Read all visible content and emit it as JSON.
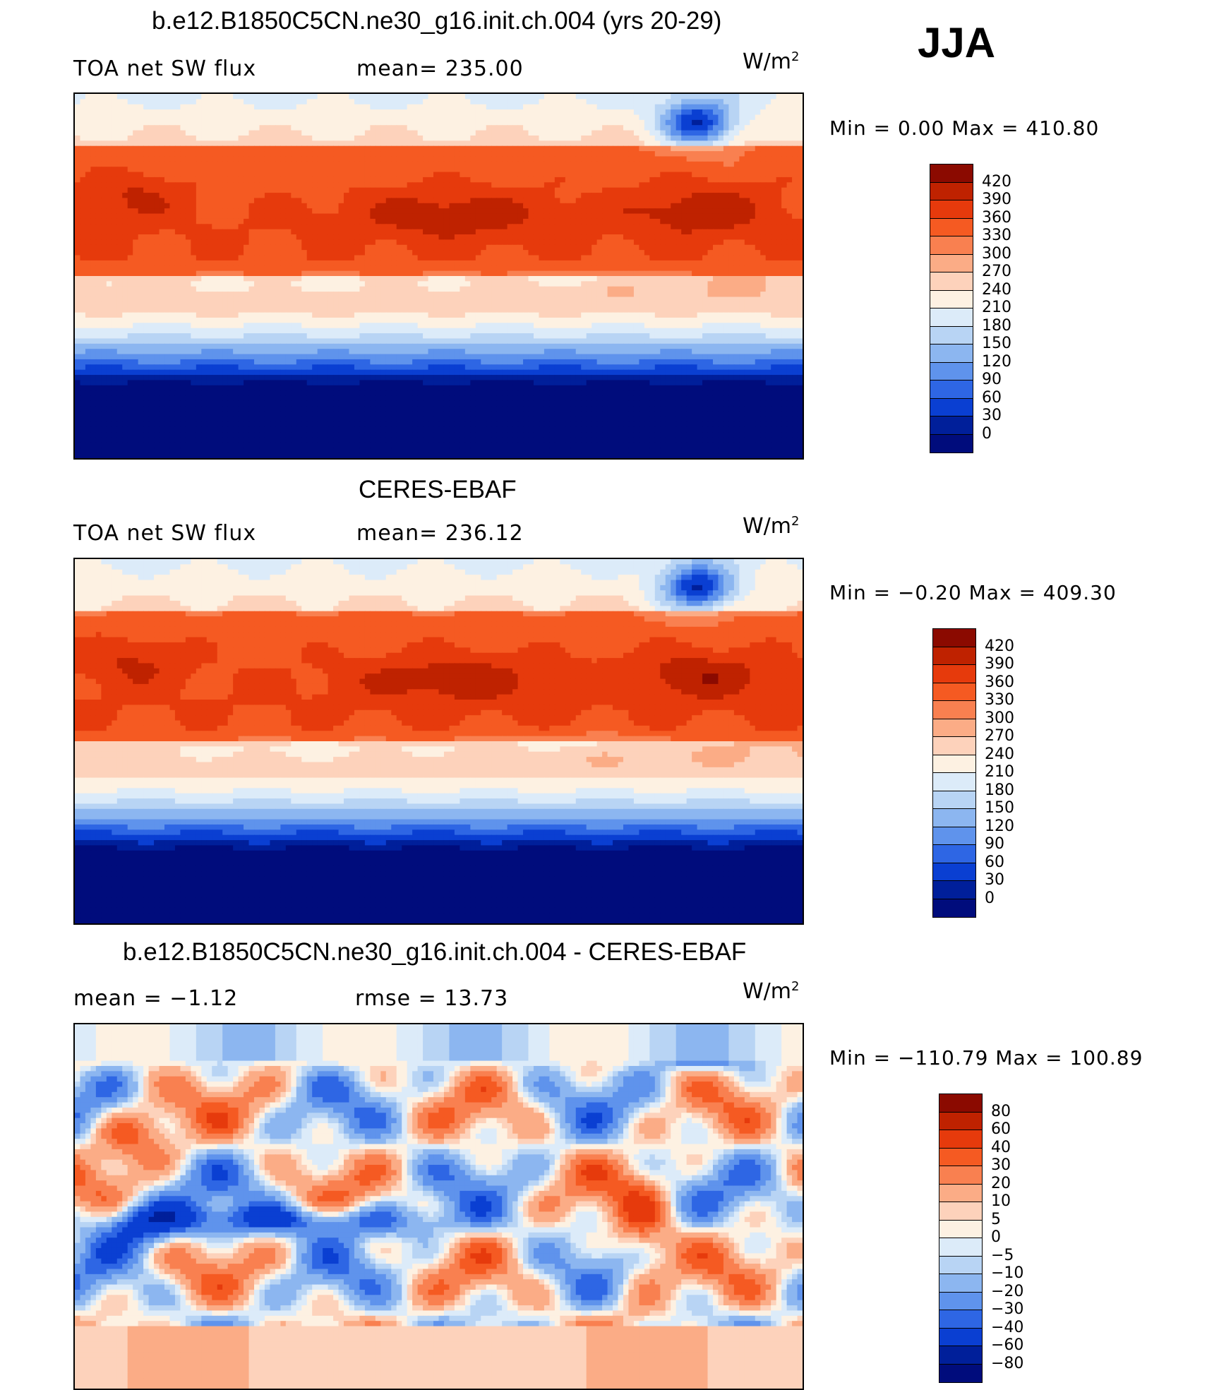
{
  "season": "JJA",
  "panels": [
    {
      "title": "b.e12.B1850C5CN.ne30_g16.init.ch.004 (yrs 20-29)",
      "left_label": "TOA net SW flux",
      "stat_label": "mean= 235.00",
      "units": "W/m",
      "units_sup": "2",
      "minmax": "Min =    0.00 Max = 410.80",
      "map_alt": "Global map of TOA net SW flux from model run"
    },
    {
      "title": "CERES-EBAF",
      "left_label": "TOA net SW flux",
      "stat_label": "mean= 236.12",
      "units": "W/m",
      "units_sup": "2",
      "minmax": "Min =  −0.20 Max = 409.30",
      "map_alt": "Global map of TOA net SW flux from CERES-EBAF"
    },
    {
      "title": "b.e12.B1850C5CN.ne30_g16.init.ch.004 - CERES-EBAF",
      "left_label": "mean =   −1.12",
      "stat_label": "rmse =   13.73",
      "units": "W/m",
      "units_sup": "2",
      "minmax": "Min = −110.79 Max = 100.89",
      "map_alt": "Global map of difference model minus CERES-EBAF"
    }
  ],
  "chart_data": [
    {
      "type": "heatmap",
      "title": "b.e12.B1850C5CN.ne30_g16.init.ch.004 (yrs 20-29)",
      "variable": "TOA net SW flux",
      "season": "JJA",
      "units": "W/m2",
      "mean": 235.0,
      "min": 0.0,
      "max": 410.8,
      "colorbar_levels": [
        "420",
        "390",
        "360",
        "330",
        "300",
        "270",
        "240",
        "210",
        "180",
        "150",
        "120",
        "90",
        "60",
        "30",
        "0"
      ],
      "colorbar_colors": [
        "#8b0a00",
        "#bf2200",
        "#e63a0c",
        "#f55a22",
        "#f98050",
        "#fbac86",
        "#fdd2bb",
        "#fdf1e2",
        "#dcebf9",
        "#b8d4f4",
        "#8cb6f0",
        "#5f93ec",
        "#2e66e4",
        "#0a3fd2",
        "#001f9a",
        "#000c7c"
      ]
    },
    {
      "type": "heatmap",
      "title": "CERES-EBAF",
      "variable": "TOA net SW flux",
      "season": "JJA",
      "units": "W/m2",
      "mean": 236.12,
      "min": -0.2,
      "max": 409.3,
      "colorbar_levels": [
        "420",
        "390",
        "360",
        "330",
        "300",
        "270",
        "240",
        "210",
        "180",
        "150",
        "120",
        "90",
        "60",
        "30",
        "0"
      ],
      "colorbar_colors": [
        "#8b0a00",
        "#bf2200",
        "#e63a0c",
        "#f55a22",
        "#f98050",
        "#fbac86",
        "#fdd2bb",
        "#fdf1e2",
        "#dcebf9",
        "#b8d4f4",
        "#8cb6f0",
        "#5f93ec",
        "#2e66e4",
        "#0a3fd2",
        "#001f9a",
        "#000c7c"
      ]
    },
    {
      "type": "heatmap",
      "title": "b.e12.B1850C5CN.ne30_g16.init.ch.004 - CERES-EBAF",
      "season": "JJA",
      "units": "W/m2",
      "mean": -1.12,
      "rmse": 13.73,
      "min": -110.79,
      "max": 100.89,
      "colorbar_levels": [
        "80",
        "60",
        "40",
        "30",
        "20",
        "10",
        "5",
        "0",
        "−5",
        "−10",
        "−20",
        "−30",
        "−40",
        "−60",
        "−80"
      ],
      "colorbar_colors": [
        "#8b0a00",
        "#bf2200",
        "#e63a0c",
        "#f55a22",
        "#f98050",
        "#fbac86",
        "#fdd2bb",
        "#fdf1e2",
        "#dcebf9",
        "#b8d4f4",
        "#8cb6f0",
        "#5f93ec",
        "#2e66e4",
        "#0a3fd2",
        "#001f9a",
        "#000c7c"
      ]
    }
  ]
}
